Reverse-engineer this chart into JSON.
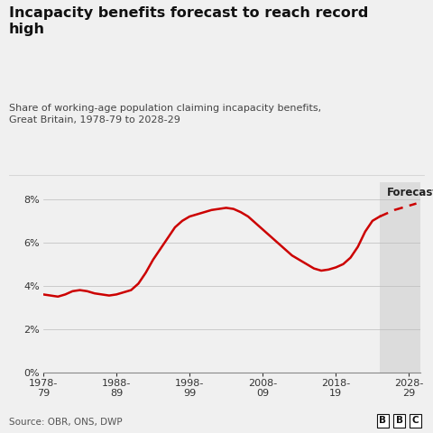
{
  "title": "Incapacity benefits forecast to reach record\nhigh",
  "subtitle": "Share of working-age population claiming incapacity benefits,\nGreat Britain, 1978-79 to 2028-29",
  "source": "Source: OBR, ONS, DWP",
  "line_color": "#cc0000",
  "forecast_label": "Forecast",
  "background_color": "#f0f0f0",
  "plot_bg_color": "#f0f0f0",
  "forecast_bg_color": "#dcdcdc",
  "forecast_start_x": 2024,
  "xlim": [
    1978,
    2029.5
  ],
  "ylim": [
    0,
    8.8
  ],
  "xticks": [
    1978,
    1988,
    1998,
    2008,
    2018,
    2028
  ],
  "xticklabels": [
    "1978-\n79",
    "1988-\n89",
    "1998-\n99",
    "2008-\n09",
    "2018-\n19",
    "2028-\n29"
  ],
  "yticks": [
    0,
    2,
    4,
    6,
    8
  ],
  "yticklabels": [
    "0%",
    "2%",
    "4%",
    "6%",
    "8%"
  ],
  "actual_x": [
    1978,
    1979,
    1980,
    1981,
    1982,
    1983,
    1984,
    1985,
    1986,
    1987,
    1988,
    1989,
    1990,
    1991,
    1992,
    1993,
    1994,
    1995,
    1996,
    1997,
    1998,
    1999,
    2000,
    2001,
    2002,
    2003,
    2004,
    2005,
    2006,
    2007,
    2008,
    2009,
    2010,
    2011,
    2012,
    2013,
    2014,
    2015,
    2016,
    2017,
    2018,
    2019,
    2020,
    2021,
    2022,
    2023,
    2024
  ],
  "actual_y": [
    3.6,
    3.55,
    3.5,
    3.6,
    3.75,
    3.8,
    3.75,
    3.65,
    3.6,
    3.55,
    3.6,
    3.7,
    3.8,
    4.1,
    4.6,
    5.2,
    5.7,
    6.2,
    6.7,
    7.0,
    7.2,
    7.3,
    7.4,
    7.5,
    7.55,
    7.6,
    7.55,
    7.4,
    7.2,
    6.9,
    6.6,
    6.3,
    6.0,
    5.7,
    5.4,
    5.2,
    5.0,
    4.8,
    4.7,
    4.75,
    4.85,
    5.0,
    5.3,
    5.8,
    6.5,
    7.0,
    7.2
  ],
  "forecast_x": [
    2024,
    2025,
    2026,
    2027,
    2028,
    2029
  ],
  "forecast_y": [
    7.2,
    7.35,
    7.5,
    7.6,
    7.7,
    7.8
  ]
}
